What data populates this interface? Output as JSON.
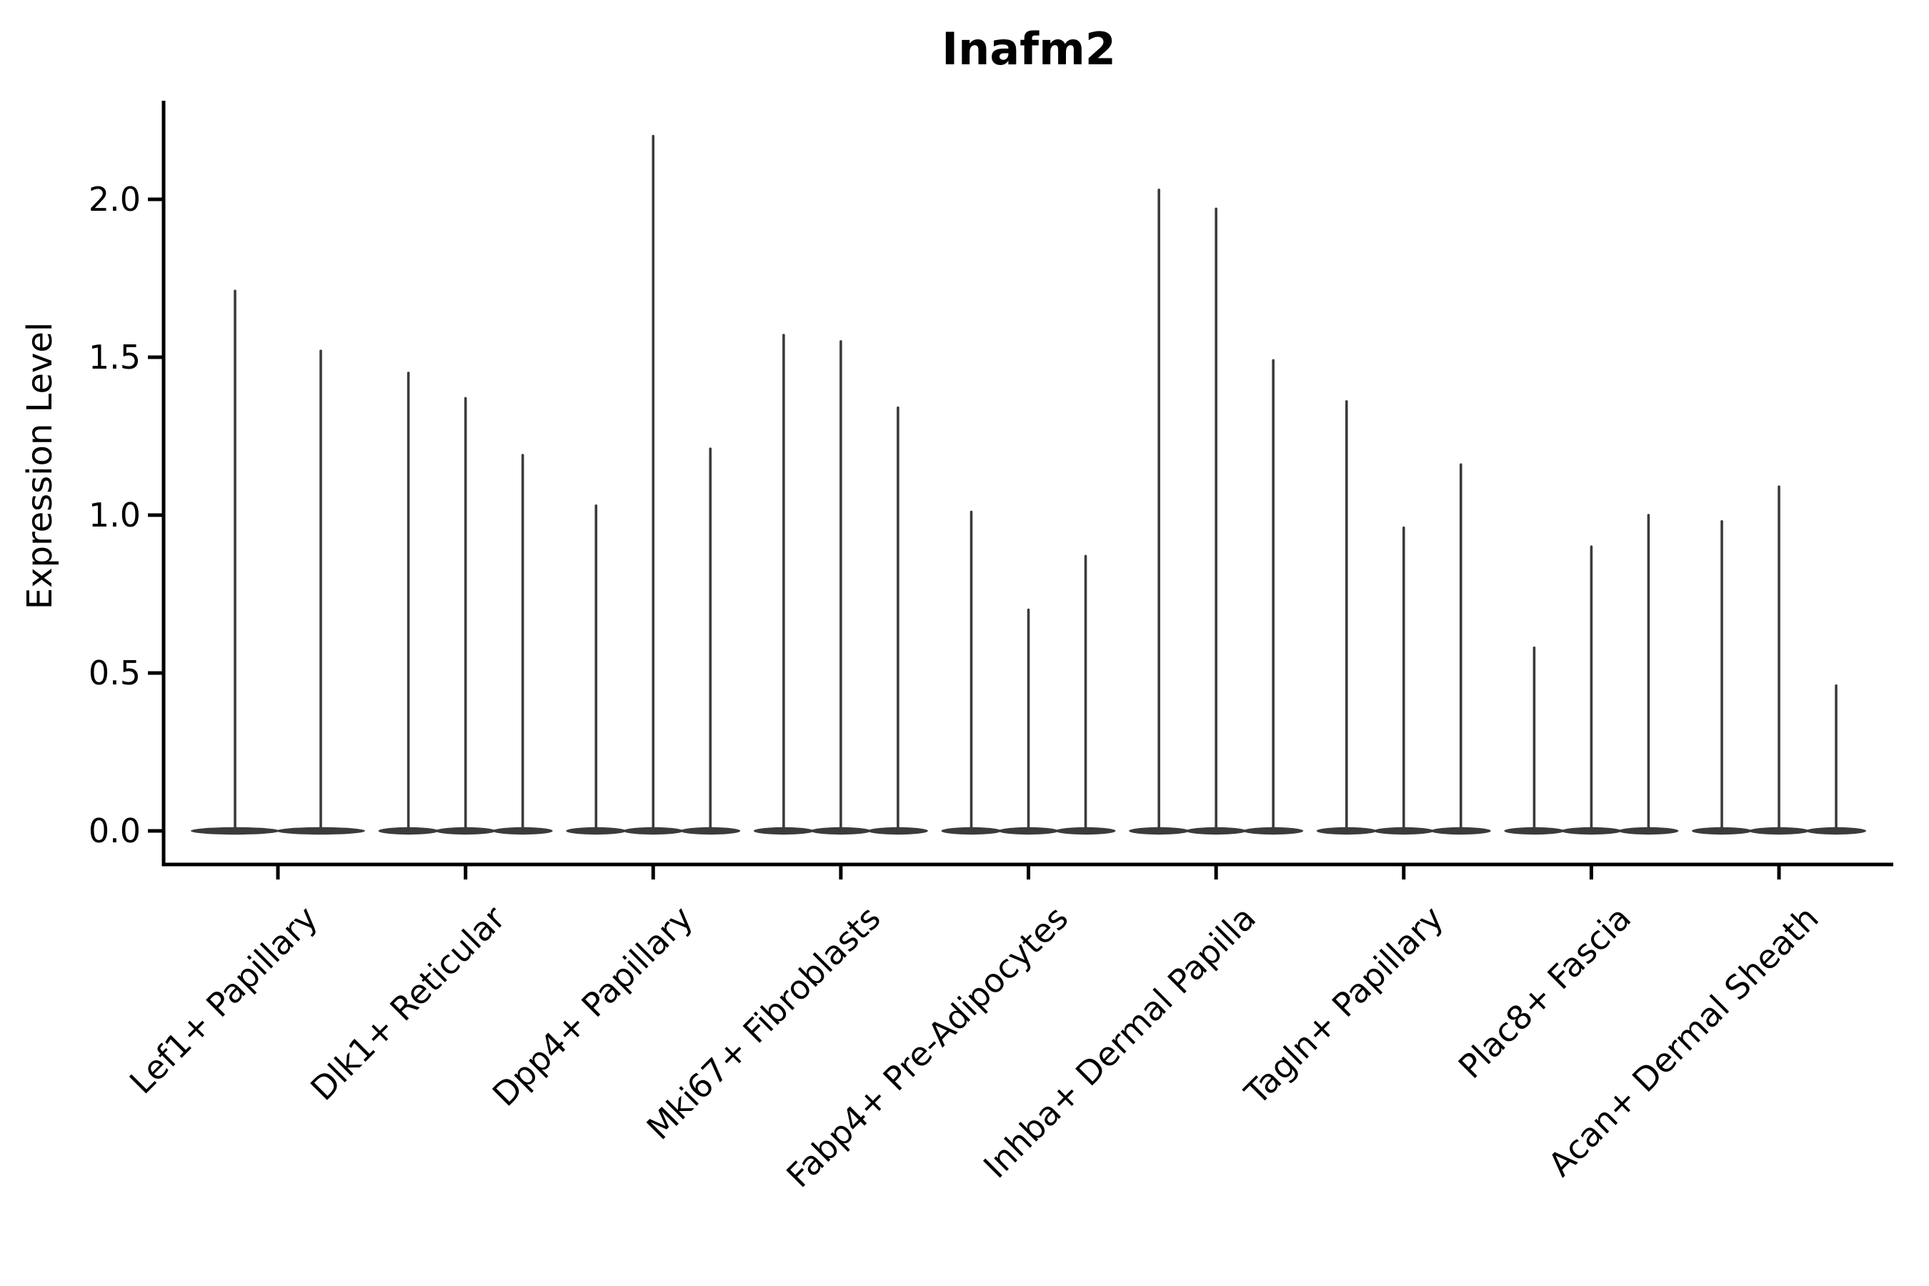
{
  "title": "Inafm2",
  "chart_data": {
    "type": "violin",
    "title": "Inafm2",
    "ylabel": "Expression Level",
    "xlabel": "",
    "ylim": [
      0,
      2.32
    ],
    "yticks": [
      {
        "label": "0.0",
        "value": 0.0
      },
      {
        "label": "0.5",
        "value": 0.5
      },
      {
        "label": "1.0",
        "value": 1.0
      },
      {
        "label": "1.5",
        "value": 1.5
      },
      {
        "label": "2.0",
        "value": 2.0
      }
    ],
    "grid": false,
    "legend": "none",
    "categories": [
      "Lef1+ Papillary",
      "Dlk1+ Reticular",
      "Dpp4+ Papillary",
      "Mki67+ Fibroblasts",
      "Fabp4+ Pre-Adipocytes",
      "Inhba+ Dermal Papilla",
      "Tagln+ Papillary",
      "Plac8+ Fascia",
      "Acan+ Dermal Sheath"
    ],
    "groups": [
      {
        "category": "Lef1+ Papillary",
        "violin_max_values": [
          1.71,
          1.52
        ]
      },
      {
        "category": "Dlk1+ Reticular",
        "violin_max_values": [
          1.45,
          1.37,
          1.19
        ]
      },
      {
        "category": "Dpp4+ Papillary",
        "violin_max_values": [
          1.03,
          2.2,
          1.21
        ]
      },
      {
        "category": "Mki67+ Fibroblasts",
        "violin_max_values": [
          1.57,
          1.55,
          1.34
        ]
      },
      {
        "category": "Fabp4+ Pre-Adipocytes",
        "violin_max_values": [
          1.01,
          0.7,
          0.87
        ]
      },
      {
        "category": "Inhba+ Dermal Papilla",
        "violin_max_values": [
          2.03,
          1.97,
          1.49
        ]
      },
      {
        "category": "Tagln+ Papillary",
        "violin_max_values": [
          1.36,
          0.96,
          1.16
        ]
      },
      {
        "category": "Plac8+ Fascia",
        "violin_max_values": [
          0.58,
          0.9,
          1.0
        ]
      },
      {
        "category": "Acan+ Dermal Sheath",
        "violin_max_values": [
          0.98,
          1.09,
          0.46
        ]
      }
    ],
    "baseline_value": 0.0,
    "violin_color": "#3b3b3b",
    "axis_color": "#000000",
    "text_color": "#000000",
    "background": "#ffffff"
  }
}
